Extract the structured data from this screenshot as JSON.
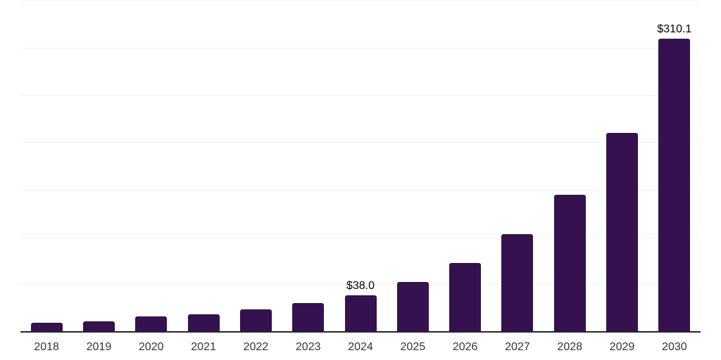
{
  "chart_data": {
    "type": "bar",
    "title": "",
    "xlabel": "",
    "ylabel": "",
    "categories": [
      "2018",
      "2019",
      "2020",
      "2021",
      "2022",
      "2023",
      "2024",
      "2025",
      "2026",
      "2027",
      "2028",
      "2029",
      "2030"
    ],
    "values": [
      8.7,
      10.2,
      15.6,
      17.6,
      23.4,
      29.7,
      38.0,
      52.3,
      72.0,
      102.4,
      144.7,
      210.0,
      310.1
    ],
    "bar_labels": [
      "",
      "",
      "",
      "",
      "",
      "",
      "$38.0",
      "",
      "",
      "",
      "",
      "",
      "$310.1"
    ],
    "ylim": [
      0,
      350
    ],
    "gridline_interval": 50,
    "grid": true,
    "legend": false,
    "y_axis_tick_labels_visible": false,
    "colors": {
      "bar_fill": "#36114F",
      "axis_line": "#262626",
      "gridline": "#F2F2F2",
      "x_tick_label": "#333333",
      "data_label": "#000000",
      "background": "#FFFFFF"
    }
  }
}
